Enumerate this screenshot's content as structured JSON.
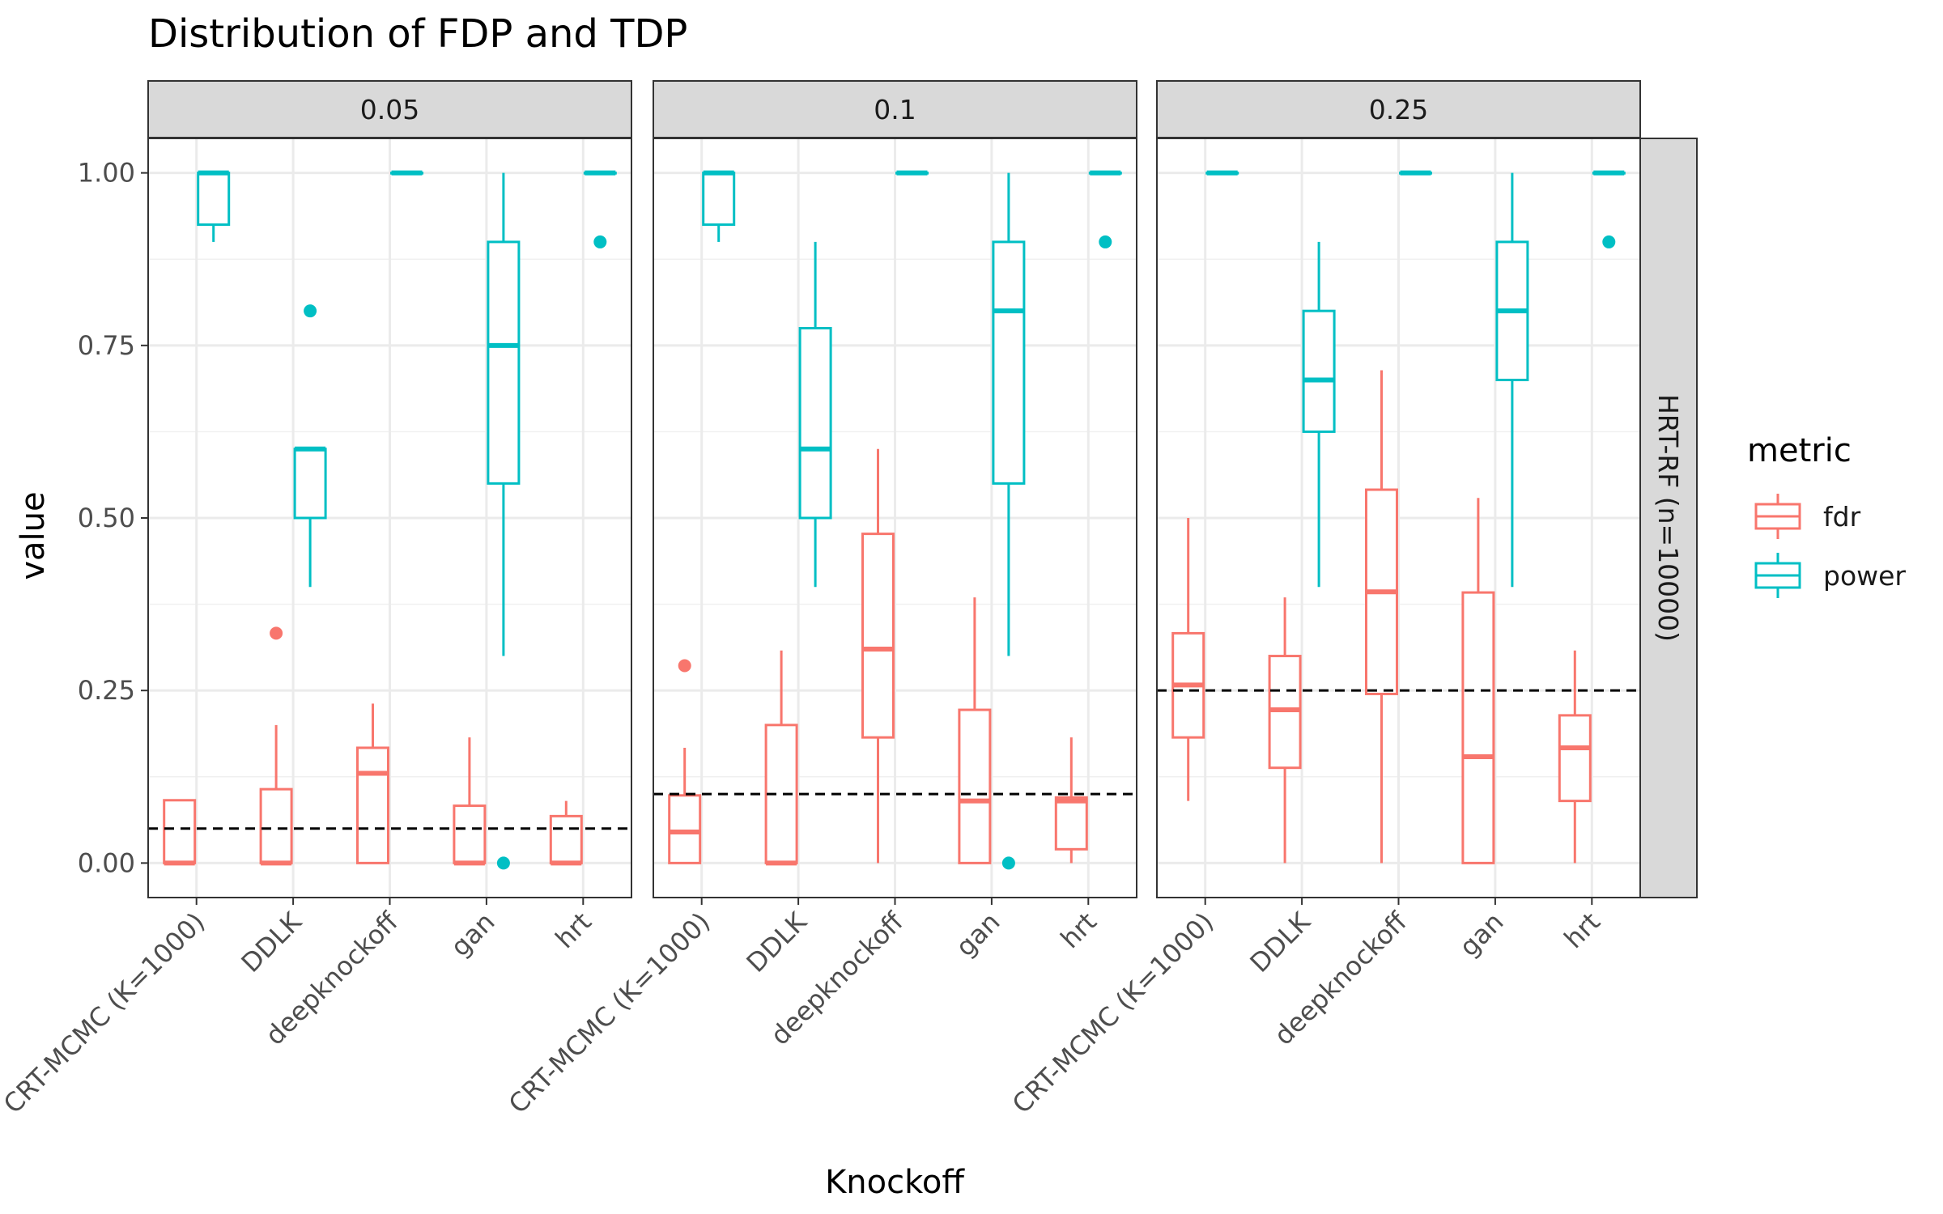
{
  "chart_data": {
    "type": "box",
    "title": "Distribution of FDP and TDP",
    "xlabel": "Knockoff",
    "ylabel": "value",
    "ylim": [
      -0.05,
      1.05
    ],
    "yticks": [
      0.0,
      0.25,
      0.5,
      0.75,
      1.0
    ],
    "ytick_labels": [
      "0.00",
      "0.25",
      "0.50",
      "0.75",
      "1.00"
    ],
    "categories": [
      "CRT-MCMC (K=1000)",
      "DDLK",
      "deepknockoff",
      "gan",
      "hrt"
    ],
    "row_strip": "HRT-RF (n=10000)",
    "legend": {
      "title": "metric",
      "position": "right",
      "entries": [
        {
          "name": "fdr",
          "color": "#F8766D"
        },
        {
          "name": "power",
          "color": "#00BFC4"
        }
      ]
    },
    "series_colors": {
      "fdr": "#F8766D",
      "power": "#00BFC4"
    },
    "grid": true,
    "panels": [
      {
        "label": "0.05",
        "hline": 0.05,
        "boxes": [
          {
            "category": "CRT-MCMC (K=1000)",
            "metric": "fdr",
            "lower": 0.0,
            "q1": 0.0,
            "median": 0.0,
            "q3": 0.091,
            "upper": 0.091,
            "outliers": []
          },
          {
            "category": "CRT-MCMC (K=1000)",
            "metric": "power",
            "lower": 0.9,
            "q1": 0.925,
            "median": 1.0,
            "q3": 1.0,
            "upper": 1.0,
            "outliers": []
          },
          {
            "category": "DDLK",
            "metric": "fdr",
            "lower": 0.0,
            "q1": 0.0,
            "median": 0.0,
            "q3": 0.107,
            "upper": 0.2,
            "outliers": [
              0.333
            ]
          },
          {
            "category": "DDLK",
            "metric": "power",
            "lower": 0.4,
            "q1": 0.5,
            "median": 0.6,
            "q3": 0.6,
            "upper": 0.6,
            "outliers": [
              0.8
            ]
          },
          {
            "category": "deepknockoff",
            "metric": "fdr",
            "lower": 0.0,
            "q1": 0.0,
            "median": 0.13,
            "q3": 0.167,
            "upper": 0.231,
            "outliers": []
          },
          {
            "category": "deepknockoff",
            "metric": "power",
            "lower": 1.0,
            "q1": 1.0,
            "median": 1.0,
            "q3": 1.0,
            "upper": 1.0,
            "outliers": []
          },
          {
            "category": "gan",
            "metric": "fdr",
            "lower": 0.0,
            "q1": 0.0,
            "median": 0.0,
            "q3": 0.083,
            "upper": 0.182,
            "outliers": []
          },
          {
            "category": "gan",
            "metric": "power",
            "lower": 0.3,
            "q1": 0.55,
            "median": 0.75,
            "q3": 0.9,
            "upper": 1.0,
            "outliers": [
              0.0
            ]
          },
          {
            "category": "hrt",
            "metric": "fdr",
            "lower": 0.0,
            "q1": 0.0,
            "median": 0.0,
            "q3": 0.068,
            "upper": 0.09,
            "outliers": []
          },
          {
            "category": "hrt",
            "metric": "power",
            "lower": 1.0,
            "q1": 1.0,
            "median": 1.0,
            "q3": 1.0,
            "upper": 1.0,
            "outliers": [
              0.9
            ]
          }
        ]
      },
      {
        "label": "0.1",
        "hline": 0.1,
        "boxes": [
          {
            "category": "CRT-MCMC (K=1000)",
            "metric": "fdr",
            "lower": 0.0,
            "q1": 0.0,
            "median": 0.045,
            "q3": 0.098,
            "upper": 0.167,
            "outliers": [
              0.286
            ]
          },
          {
            "category": "CRT-MCMC (K=1000)",
            "metric": "power",
            "lower": 0.9,
            "q1": 0.925,
            "median": 1.0,
            "q3": 1.0,
            "upper": 1.0,
            "outliers": []
          },
          {
            "category": "DDLK",
            "metric": "fdr",
            "lower": 0.0,
            "q1": 0.0,
            "median": 0.0,
            "q3": 0.2,
            "upper": 0.308,
            "outliers": []
          },
          {
            "category": "DDLK",
            "metric": "power",
            "lower": 0.4,
            "q1": 0.5,
            "median": 0.6,
            "q3": 0.775,
            "upper": 0.9,
            "outliers": []
          },
          {
            "category": "deepknockoff",
            "metric": "fdr",
            "lower": 0.0,
            "q1": 0.182,
            "median": 0.31,
            "q3": 0.477,
            "upper": 0.6,
            "outliers": []
          },
          {
            "category": "deepknockoff",
            "metric": "power",
            "lower": 1.0,
            "q1": 1.0,
            "median": 1.0,
            "q3": 1.0,
            "upper": 1.0,
            "outliers": []
          },
          {
            "category": "gan",
            "metric": "fdr",
            "lower": 0.0,
            "q1": 0.0,
            "median": 0.09,
            "q3": 0.222,
            "upper": 0.385,
            "outliers": []
          },
          {
            "category": "gan",
            "metric": "power",
            "lower": 0.3,
            "q1": 0.55,
            "median": 0.8,
            "q3": 0.9,
            "upper": 1.0,
            "outliers": [
              0.0
            ]
          },
          {
            "category": "hrt",
            "metric": "fdr",
            "lower": 0.0,
            "q1": 0.02,
            "median": 0.09,
            "q3": 0.095,
            "upper": 0.182,
            "outliers": []
          },
          {
            "category": "hrt",
            "metric": "power",
            "lower": 1.0,
            "q1": 1.0,
            "median": 1.0,
            "q3": 1.0,
            "upper": 1.0,
            "outliers": [
              0.9
            ]
          }
        ]
      },
      {
        "label": "0.25",
        "hline": 0.25,
        "boxes": [
          {
            "category": "CRT-MCMC (K=1000)",
            "metric": "fdr",
            "lower": 0.09,
            "q1": 0.182,
            "median": 0.258,
            "q3": 0.333,
            "upper": 0.5,
            "outliers": []
          },
          {
            "category": "CRT-MCMC (K=1000)",
            "metric": "power",
            "lower": 1.0,
            "q1": 1.0,
            "median": 1.0,
            "q3": 1.0,
            "upper": 1.0,
            "outliers": []
          },
          {
            "category": "DDLK",
            "metric": "fdr",
            "lower": 0.0,
            "q1": 0.138,
            "median": 0.222,
            "q3": 0.3,
            "upper": 0.385,
            "outliers": []
          },
          {
            "category": "DDLK",
            "metric": "power",
            "lower": 0.4,
            "q1": 0.625,
            "median": 0.7,
            "q3": 0.8,
            "upper": 0.9,
            "outliers": []
          },
          {
            "category": "deepknockoff",
            "metric": "fdr",
            "lower": 0.0,
            "q1": 0.245,
            "median": 0.393,
            "q3": 0.541,
            "upper": 0.714,
            "outliers": []
          },
          {
            "category": "deepknockoff",
            "metric": "power",
            "lower": 1.0,
            "q1": 1.0,
            "median": 1.0,
            "q3": 1.0,
            "upper": 1.0,
            "outliers": []
          },
          {
            "category": "gan",
            "metric": "fdr",
            "lower": 0.0,
            "q1": 0.0,
            "median": 0.154,
            "q3": 0.392,
            "upper": 0.529,
            "outliers": []
          },
          {
            "category": "gan",
            "metric": "power",
            "lower": 0.4,
            "q1": 0.7,
            "median": 0.8,
            "q3": 0.9,
            "upper": 1.0,
            "outliers": []
          },
          {
            "category": "hrt",
            "metric": "fdr",
            "lower": 0.0,
            "q1": 0.09,
            "median": 0.167,
            "q3": 0.214,
            "upper": 0.308,
            "outliers": []
          },
          {
            "category": "hrt",
            "metric": "power",
            "lower": 1.0,
            "q1": 1.0,
            "median": 1.0,
            "q3": 1.0,
            "upper": 1.0,
            "outliers": [
              0.9
            ]
          }
        ]
      }
    ]
  }
}
